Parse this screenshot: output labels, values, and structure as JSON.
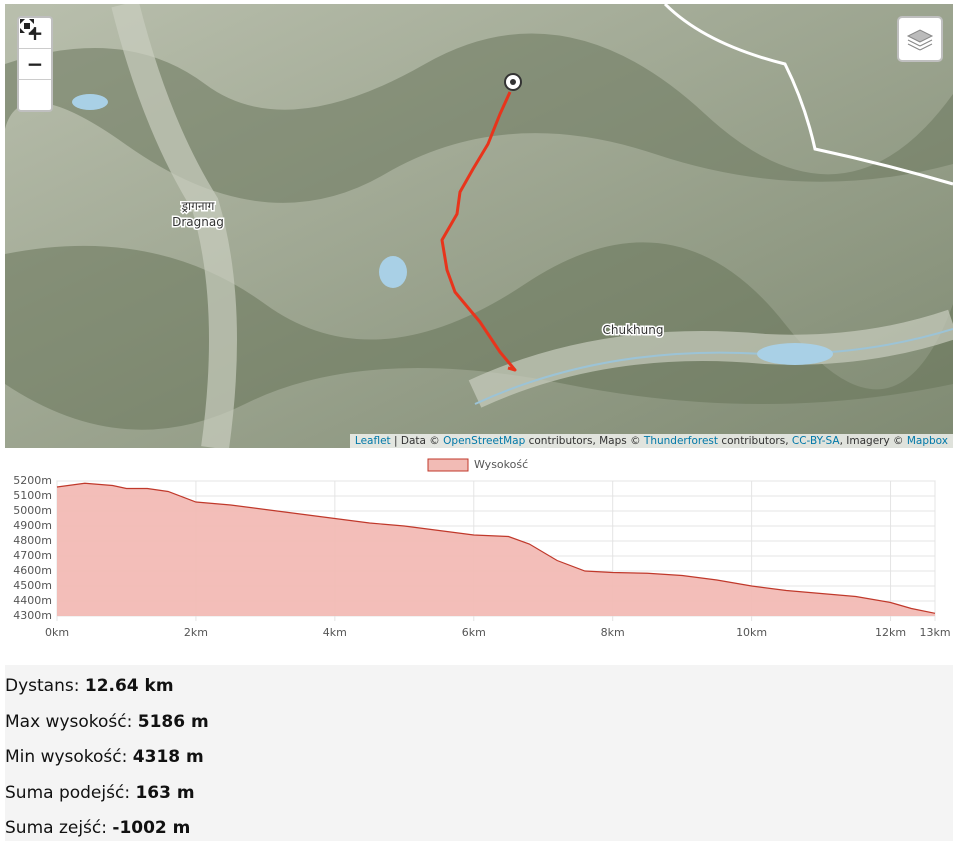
{
  "map": {
    "controls": {
      "zoom_in": "+",
      "zoom_out": "−"
    },
    "places": [
      {
        "label": "ड्रागनाग"
      },
      {
        "label": "Dragnag"
      },
      {
        "label": "Chukhung"
      }
    ],
    "attribution": [
      "Leaflet",
      " | Data © ",
      "OpenStreetMap",
      " contributors, Maps © ",
      "Thunderforest",
      " contributors, ",
      "CC-BY-SA",
      ", Imagery © ",
      "Mapbox"
    ]
  },
  "chart_data": {
    "type": "area",
    "series": [
      {
        "name": "Wysokość",
        "color": "#c0392b",
        "fill": "#f2bbb5",
        "x": [
          0,
          0.4,
          0.8,
          1.0,
          1.3,
          1.6,
          2.0,
          2.5,
          3.0,
          3.5,
          4.0,
          4.5,
          5.0,
          5.5,
          6.0,
          6.5,
          6.8,
          7.2,
          7.6,
          8.0,
          8.5,
          9.0,
          9.5,
          10.0,
          10.5,
          11.0,
          11.5,
          12.0,
          12.3,
          12.64
        ],
        "values": [
          5160,
          5185,
          5170,
          5150,
          5150,
          5130,
          5060,
          5040,
          5010,
          4980,
          4950,
          4920,
          4900,
          4870,
          4840,
          4830,
          4780,
          4670,
          4600,
          4590,
          4585,
          4570,
          4540,
          4500,
          4470,
          4450,
          4430,
          4390,
          4350,
          4318
        ]
      }
    ],
    "xlim": [
      0,
      12.64
    ],
    "ylim": [
      4300,
      5200
    ],
    "xticks": [
      {
        "value": 0,
        "label": "0km"
      },
      {
        "value": 2,
        "label": "2km"
      },
      {
        "value": 4,
        "label": "4km"
      },
      {
        "value": 6,
        "label": "6km"
      },
      {
        "value": 8,
        "label": "8km"
      },
      {
        "value": 10,
        "label": "10km"
      },
      {
        "value": 12,
        "label": "12km"
      },
      {
        "value": 12.64,
        "label": "13km"
      }
    ],
    "yticks": [
      {
        "value": 4300,
        "label": "4300m"
      },
      {
        "value": 4400,
        "label": "4400m"
      },
      {
        "value": 4500,
        "label": "4500m"
      },
      {
        "value": 4600,
        "label": "4600m"
      },
      {
        "value": 4700,
        "label": "4700m"
      },
      {
        "value": 4800,
        "label": "4800m"
      },
      {
        "value": 4900,
        "label": "4900m"
      },
      {
        "value": 5000,
        "label": "5000m"
      },
      {
        "value": 5100,
        "label": "5100m"
      },
      {
        "value": 5200,
        "label": "5200m"
      }
    ],
    "grid": true,
    "legend": "top"
  },
  "stats": [
    {
      "label": "Dystans:",
      "value": "12.64 km"
    },
    {
      "label": "Max wysokość:",
      "value": "5186 m"
    },
    {
      "label": "Min wysokość:",
      "value": "4318 m"
    },
    {
      "label": "Suma podejść:",
      "value": "163 m"
    },
    {
      "label": "Suma zejść:",
      "value": "-1002 m"
    }
  ]
}
